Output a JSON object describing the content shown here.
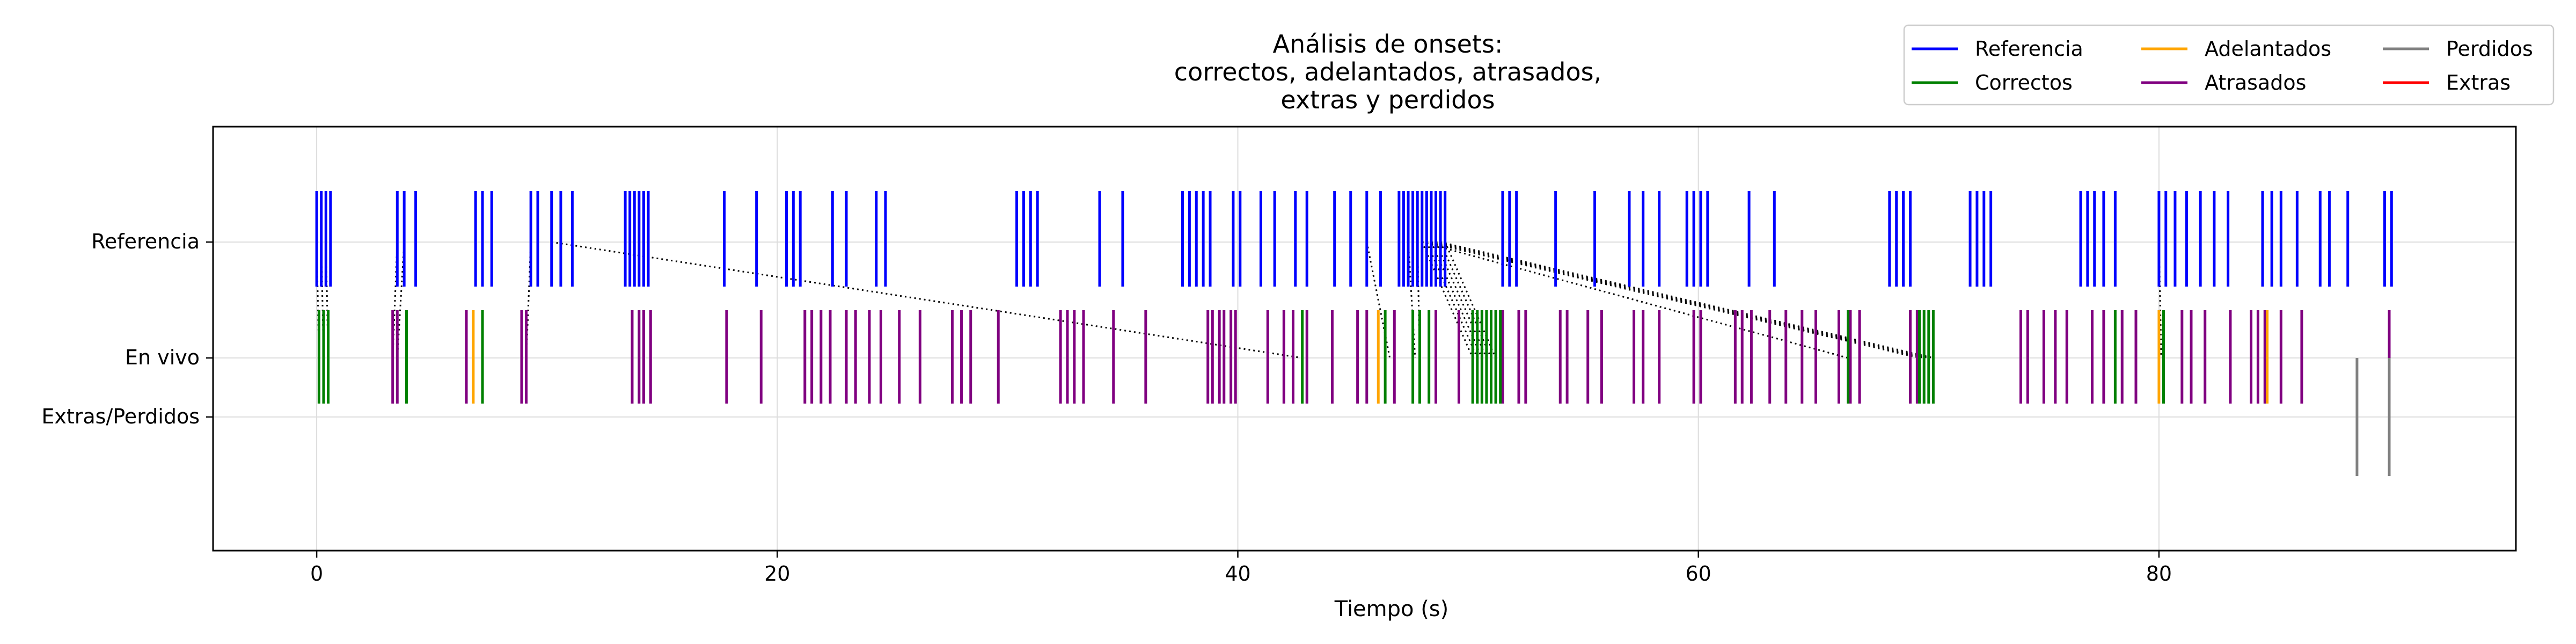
{
  "chart_data": {
    "type": "event-raster",
    "title_lines": [
      "Análisis de onsets:",
      "correctos, adelantados, atrasados,",
      "extras y perdidos"
    ],
    "xlabel": "Tiempo (s)",
    "ylabel": "",
    "xlim": [
      -4.5,
      95.5
    ],
    "xticks": [
      0,
      20,
      40,
      60,
      80
    ],
    "ytick_labels": {
      "reference": "Referencia",
      "live": "En vivo",
      "extras": "Extras/Perdidos"
    },
    "grid": true,
    "legend_placement": "top-right (outside)",
    "legend": [
      {
        "label": "Referencia",
        "color": "#0000ff"
      },
      {
        "label": "Correctos",
        "color": "#008000"
      },
      {
        "label": "Adelantados",
        "color": "#ffa500"
      },
      {
        "label": "Atrasados",
        "color": "#800080"
      },
      {
        "label": "Perdidos",
        "color": "#808080"
      },
      {
        "label": "Extras",
        "color": "#ff0000"
      }
    ],
    "colors": {
      "Referencia": "#0000ff",
      "Correctos": "#008000",
      "Adelantados": "#ffa500",
      "Atrasados": "#800080",
      "Perdidos": "#808080",
      "Extras": "#ff0000"
    },
    "reference_onsets": [
      0.0,
      0.2,
      0.4,
      0.6,
      3.5,
      3.8,
      4.3,
      6.9,
      7.2,
      7.6,
      9.3,
      9.6,
      10.2,
      10.6,
      11.1,
      13.4,
      13.6,
      13.8,
      14.0,
      14.2,
      14.4,
      17.7,
      19.1,
      20.4,
      20.7,
      21.0,
      22.4,
      23.0,
      24.3,
      24.7,
      30.4,
      30.7,
      31.0,
      31.3,
      34.0,
      35.0,
      37.6,
      37.9,
      38.2,
      38.5,
      38.8,
      39.8,
      40.1,
      41.0,
      41.6,
      42.5,
      43.0,
      44.2,
      44.9,
      45.6,
      46.2,
      47.0,
      47.2,
      47.4,
      47.6,
      47.8,
      48.0,
      48.2,
      48.4,
      48.6,
      48.8,
      49.0,
      51.5,
      51.8,
      52.1,
      53.8,
      55.5,
      57.0,
      57.6,
      58.3,
      59.5,
      59.8,
      60.1,
      60.4,
      62.2,
      63.3,
      68.3,
      68.6,
      68.9,
      69.2,
      71.8,
      72.1,
      72.4,
      72.7,
      76.6,
      76.9,
      77.2,
      77.6,
      78.1,
      80.0,
      80.3,
      80.7,
      81.2,
      81.8,
      82.4,
      83.0,
      84.5,
      84.9,
      85.3,
      86.0,
      87.0,
      87.4,
      88.2,
      89.8,
      90.1
    ],
    "live_onsets": {
      "Correctos": [
        0.1,
        0.3,
        0.5,
        3.9,
        7.2,
        42.8,
        46.4,
        47.6,
        47.9,
        48.3,
        50.2,
        50.4,
        50.6,
        50.8,
        51.0,
        51.2,
        51.4,
        66.5,
        69.6,
        69.8,
        70.0,
        70.2,
        78.1,
        80.2
      ],
      "Adelantados": [
        6.8,
        46.1,
        80.0,
        84.7
      ],
      "Atrasados": [
        3.3,
        3.5,
        6.5,
        8.9,
        9.1,
        13.7,
        14.0,
        14.2,
        14.5,
        17.8,
        19.3,
        21.2,
        21.5,
        21.9,
        22.3,
        23.0,
        23.4,
        24.0,
        24.5,
        25.3,
        26.2,
        27.6,
        28.0,
        28.4,
        29.6,
        32.3,
        32.6,
        32.9,
        33.3,
        34.6,
        36.0,
        38.7,
        38.9,
        39.2,
        39.4,
        39.7,
        39.9,
        41.3,
        42.0,
        42.4,
        43.0,
        44.1,
        45.2,
        45.6,
        46.8,
        48.6,
        49.6,
        51.5,
        52.2,
        52.5,
        54.0,
        54.3,
        55.2,
        55.8,
        57.2,
        57.6,
        58.3,
        59.8,
        60.1,
        61.6,
        61.9,
        62.3,
        63.1,
        63.8,
        64.5,
        65.1,
        66.1,
        66.6,
        67.0,
        69.2,
        69.5,
        74.0,
        74.3,
        75.0,
        75.5,
        76.0,
        77.1,
        77.6,
        78.4,
        79.0,
        81.0,
        81.4,
        82.0,
        83.1,
        84.0,
        84.3,
        84.6,
        85.3,
        86.2,
        90.0
      ],
      "Perdidos": [
        88.6,
        90.0
      ],
      "Extras": []
    },
    "matches": [
      [
        0.0,
        0.1
      ],
      [
        0.2,
        0.3
      ],
      [
        0.4,
        0.5
      ],
      [
        3.5,
        3.3
      ],
      [
        3.8,
        3.5
      ],
      [
        9.3,
        9.1
      ],
      [
        10.2,
        42.8
      ],
      [
        45.6,
        46.6
      ],
      [
        47.4,
        47.7
      ],
      [
        47.8,
        47.9
      ],
      [
        48.0,
        50.2
      ],
      [
        48.2,
        50.4
      ],
      [
        48.4,
        50.6
      ],
      [
        48.6,
        50.8
      ],
      [
        48.8,
        51.0
      ],
      [
        49.0,
        51.2
      ],
      [
        48.0,
        66.5
      ],
      [
        48.2,
        69.6
      ],
      [
        48.4,
        69.8
      ],
      [
        48.6,
        70.0
      ],
      [
        48.8,
        70.2
      ],
      [
        80.0,
        80.1
      ]
    ]
  }
}
